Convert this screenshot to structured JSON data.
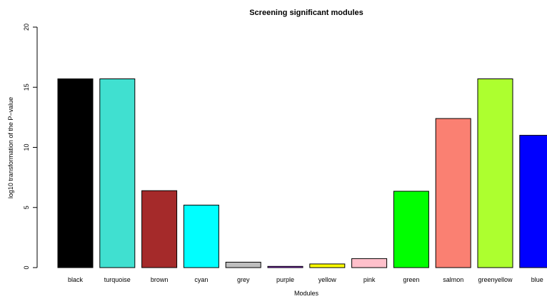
{
  "chart_data": {
    "type": "bar",
    "title": "Screening significant modules",
    "xlabel": "Modules",
    "ylabel": "log10 transformation of the P−value",
    "ylim": [
      0,
      20
    ],
    "yticks": [
      0,
      5,
      10,
      15,
      20
    ],
    "grid": false,
    "legend": "none",
    "bar_outline_color": "#000000",
    "categories": [
      "black",
      "turquoise",
      "brown",
      "cyan",
      "grey",
      "purple",
      "yellow",
      "pink",
      "green",
      "salmon",
      "greenyellow",
      "blue"
    ],
    "values": [
      15.7,
      15.7,
      6.4,
      5.2,
      0.45,
      0.1,
      0.3,
      0.75,
      6.35,
      12.4,
      15.7,
      11.0
    ],
    "colors": [
      "#000000",
      "#40E0D0",
      "#A52A2A",
      "#00FFFF",
      "#BEBEBE",
      "#A020F0",
      "#FFFF00",
      "#FFC0CB",
      "#00FF00",
      "#FA8072",
      "#ADFF2F",
      "#0000FF"
    ]
  }
}
